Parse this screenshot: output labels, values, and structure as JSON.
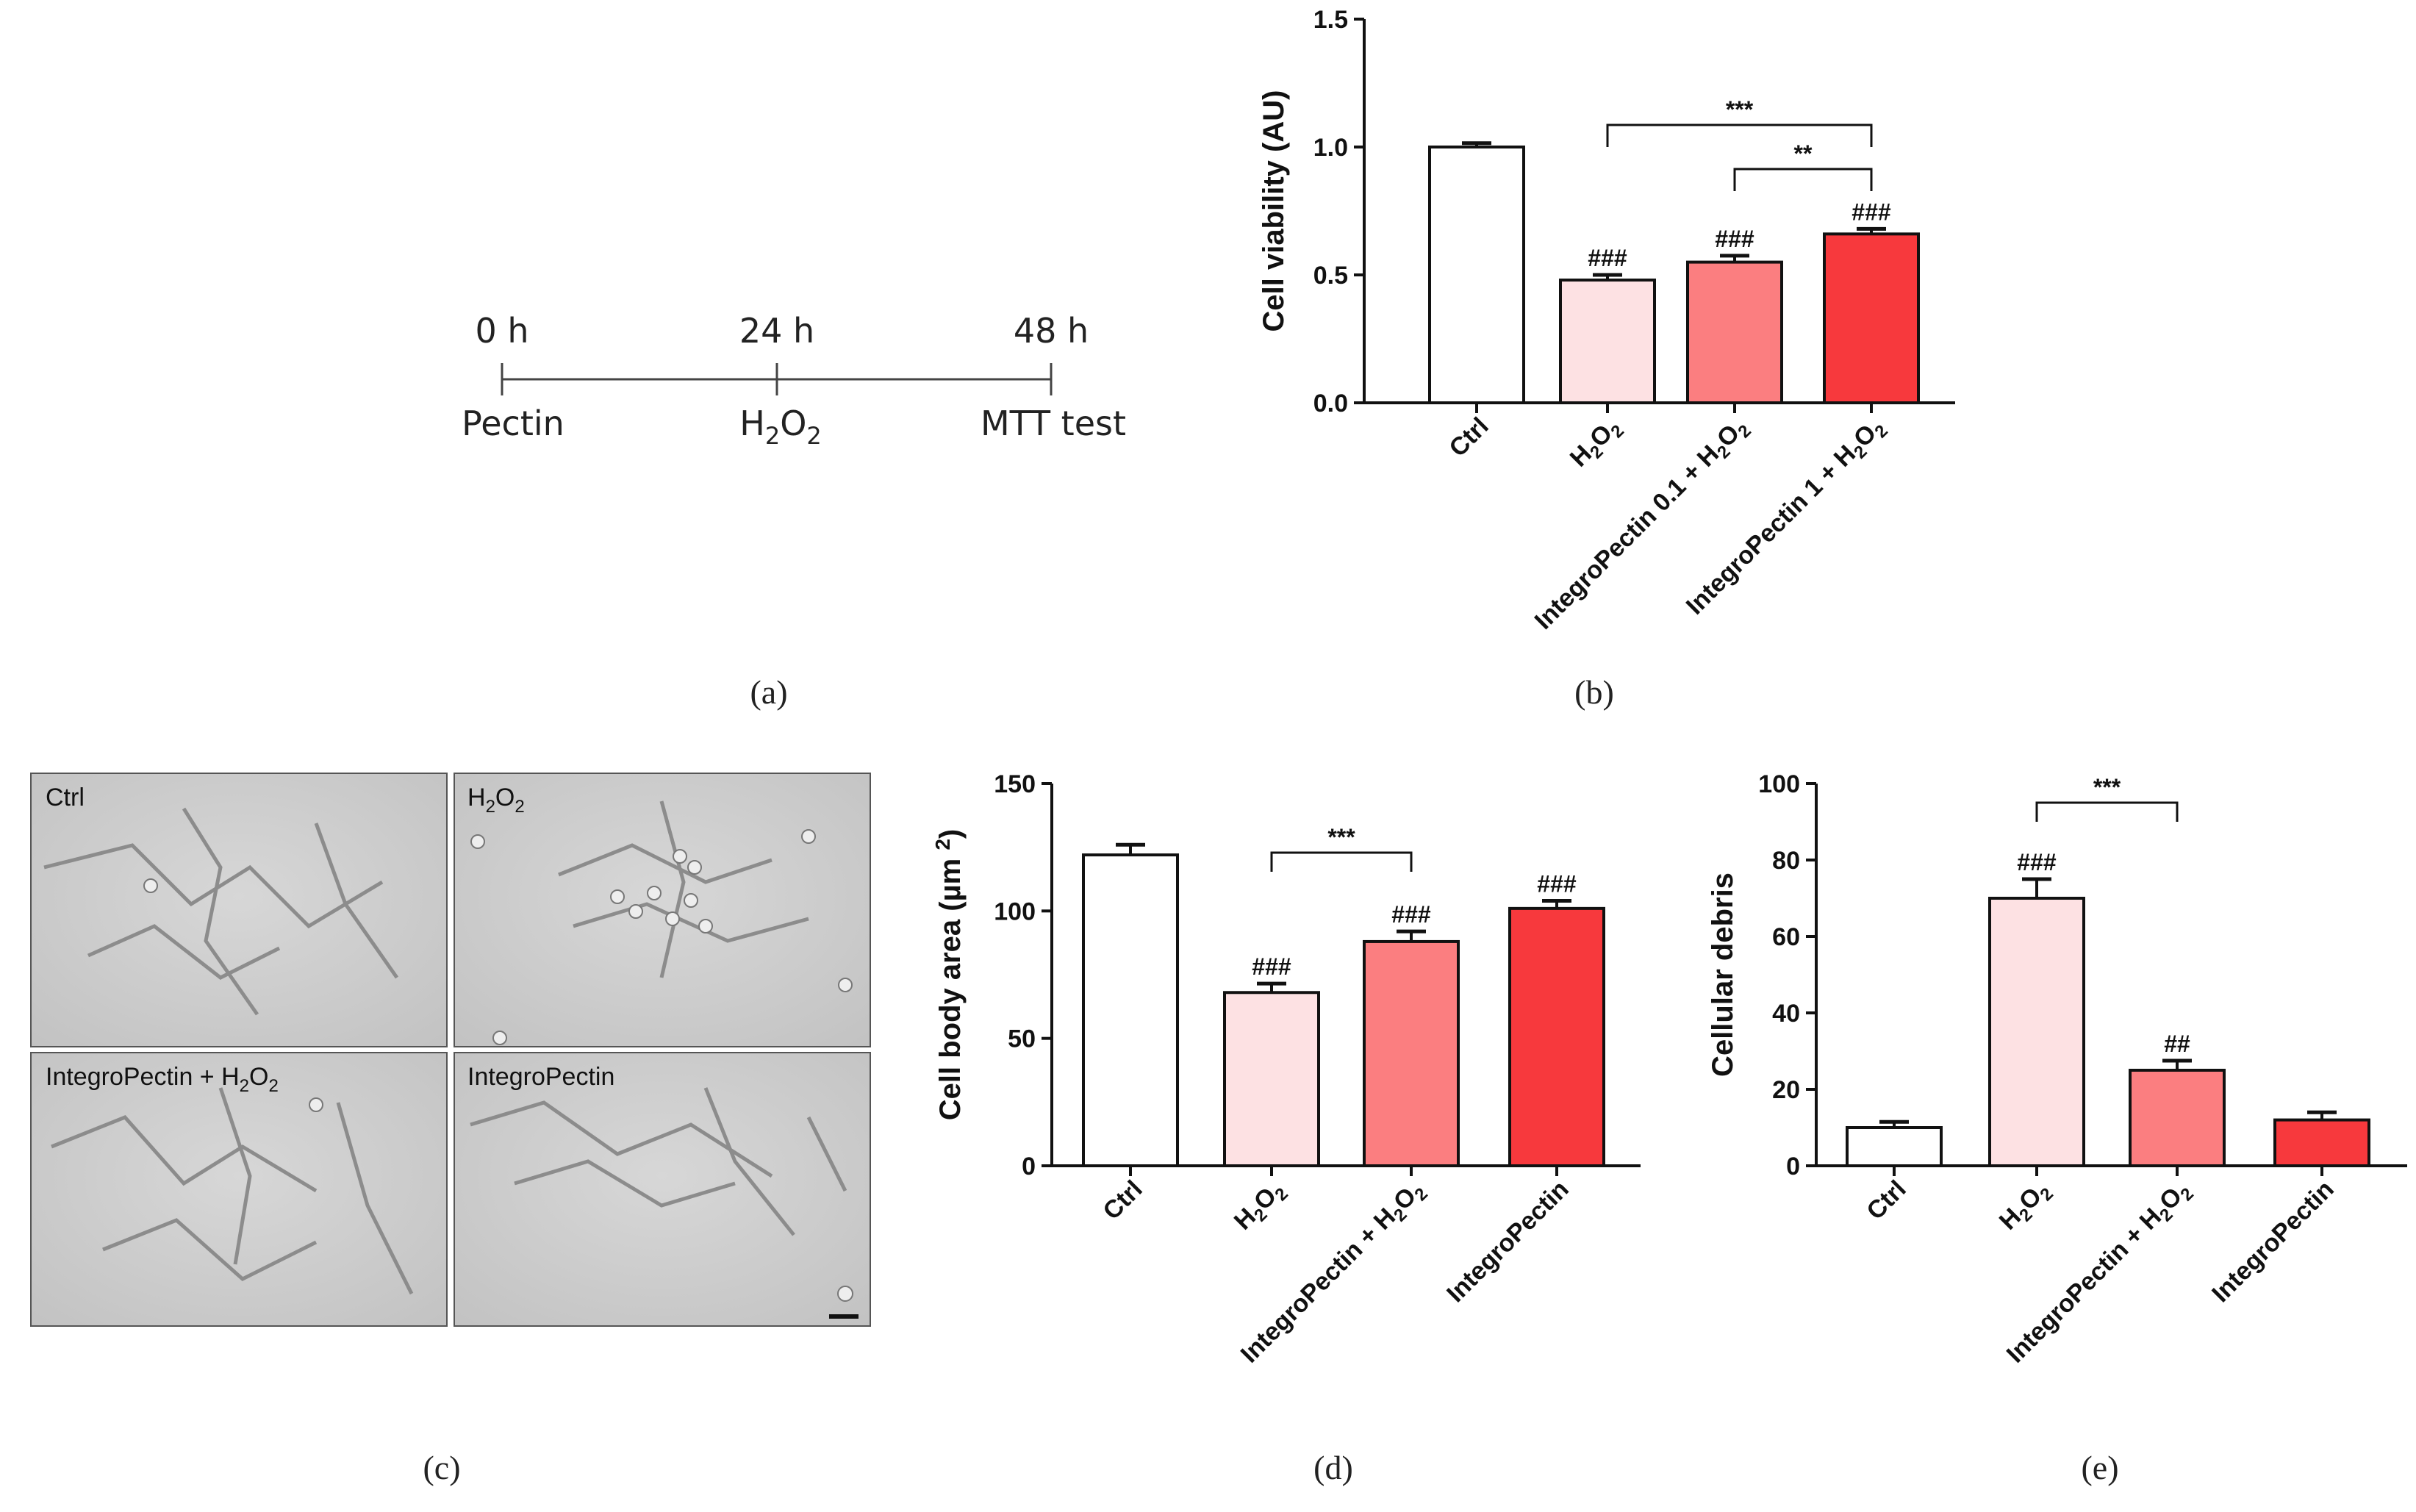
{
  "panel_labels": {
    "a": "(a)",
    "b": "(b)",
    "c": "(c)",
    "d": "(d)",
    "e": "(e)"
  },
  "timeline": {
    "times": [
      "0 h",
      "24 h",
      "48 h"
    ],
    "events": [
      "Pectin",
      "H2O2",
      "MTT test"
    ]
  },
  "micrographs": [
    "Ctrl",
    "H2O2",
    "IntegroPectin + H2O2",
    "IntegroPectin"
  ],
  "colors": {
    "ctrl": "#ffffff",
    "h2o2": "#fde1e3",
    "mid": "#fb7e80",
    "high": "#f7393d",
    "stroke": "#111111"
  },
  "chart_data": [
    {
      "id": "b",
      "type": "bar",
      "ylabel": "Cell viability (AU)",
      "ylim": [
        0,
        1.5
      ],
      "yticks": [
        "0.0",
        "0.5",
        "1.0",
        "1.5"
      ],
      "categories": [
        "Ctrl",
        "H2O2",
        "IntegroPectin 0.1 + H2O2",
        "IntegroPectin 1 + H2O2"
      ],
      "values": [
        1.0,
        0.48,
        0.55,
        0.66
      ],
      "errors": [
        0.015,
        0.02,
        0.025,
        0.02
      ],
      "bar_labels": [
        "",
        "###",
        "###",
        "###"
      ],
      "brackets": [
        {
          "from": 1,
          "to": 3,
          "label": "***"
        },
        {
          "from": 2,
          "to": 3,
          "label": "**"
        }
      ]
    },
    {
      "id": "d",
      "type": "bar",
      "ylabel": "Cell body area (µm 2)",
      "ylim": [
        0,
        150
      ],
      "yticks": [
        "0",
        "50",
        "100",
        "150"
      ],
      "categories": [
        "Ctrl",
        "H2O2",
        "IntegroPectin + H2O2",
        "IntegroPectin"
      ],
      "values": [
        122,
        68,
        88,
        101
      ],
      "errors": [
        4,
        3.5,
        4,
        3
      ],
      "bar_labels": [
        "",
        "###",
        "###",
        "###"
      ],
      "brackets": [
        {
          "from": 1,
          "to": 2,
          "label": "***"
        }
      ]
    },
    {
      "id": "e",
      "type": "bar",
      "ylabel": "Cellular debris",
      "ylim": [
        0,
        100
      ],
      "yticks": [
        "0",
        "20",
        "40",
        "60",
        "80",
        "100"
      ],
      "categories": [
        "Ctrl",
        "H2O2",
        "IntegroPectin + H2O2",
        "IntegroPectin"
      ],
      "values": [
        10,
        70,
        25,
        12
      ],
      "errors": [
        1.5,
        5,
        2.5,
        2
      ],
      "bar_labels": [
        "",
        "###",
        "##",
        ""
      ],
      "brackets": [
        {
          "from": 1,
          "to": 2,
          "label": "***"
        }
      ]
    }
  ]
}
